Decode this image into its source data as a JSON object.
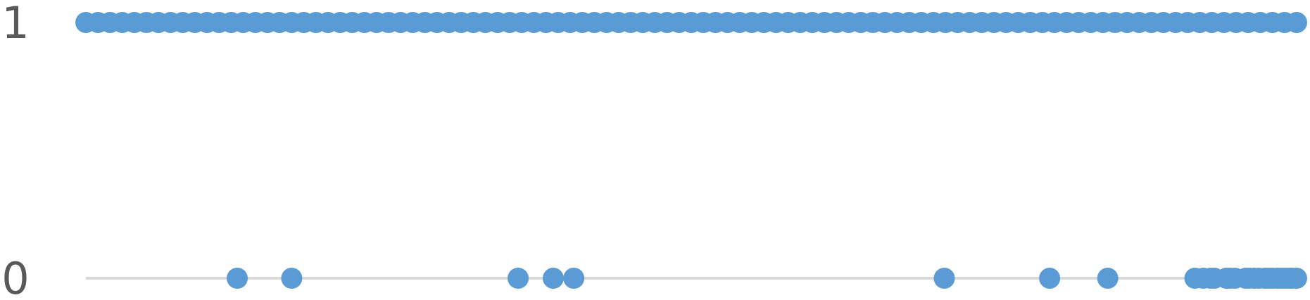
{
  "chart_data": {
    "type": "scatter",
    "title": "",
    "xlabel": "",
    "ylabel": "",
    "ylim": [
      0,
      1
    ],
    "y_ticks": [
      {
        "value": 0,
        "label": "0"
      },
      {
        "value": 1,
        "label": "1"
      }
    ],
    "grid": {
      "horizontal_baseline": true
    },
    "colors": {
      "series": "#5B9BD5",
      "baseline": "#D9D9D9",
      "tick_label": "#595959"
    },
    "series": [
      {
        "values": [
          {
            "x": 0,
            "y": 1
          },
          {
            "x": 1,
            "y": 1
          },
          {
            "x": 2,
            "y": 1
          },
          {
            "x": 3,
            "y": 1
          },
          {
            "x": 4,
            "y": 1
          },
          {
            "x": 5,
            "y": 1
          },
          {
            "x": 6,
            "y": 1
          },
          {
            "x": 7,
            "y": 1
          },
          {
            "x": 8,
            "y": 1
          },
          {
            "x": 9,
            "y": 1
          },
          {
            "x": 10,
            "y": 1
          },
          {
            "x": 11,
            "y": 1
          },
          {
            "x": 12,
            "y": 1
          },
          {
            "x": 13,
            "y": 1
          },
          {
            "x": 14,
            "y": 1
          },
          {
            "x": 15,
            "y": 1
          },
          {
            "x": 16,
            "y": 1
          },
          {
            "x": 17,
            "y": 1
          },
          {
            "x": 18,
            "y": 1
          },
          {
            "x": 19,
            "y": 1
          },
          {
            "x": 20,
            "y": 1
          },
          {
            "x": 21,
            "y": 1
          },
          {
            "x": 22,
            "y": 1
          },
          {
            "x": 23,
            "y": 1
          },
          {
            "x": 24,
            "y": 1
          },
          {
            "x": 25,
            "y": 1
          },
          {
            "x": 26,
            "y": 1
          },
          {
            "x": 27,
            "y": 1
          },
          {
            "x": 28,
            "y": 1
          },
          {
            "x": 29,
            "y": 1
          },
          {
            "x": 30,
            "y": 1
          },
          {
            "x": 31,
            "y": 1
          },
          {
            "x": 32,
            "y": 1
          },
          {
            "x": 33,
            "y": 1
          },
          {
            "x": 34,
            "y": 1
          },
          {
            "x": 35,
            "y": 1
          },
          {
            "x": 36,
            "y": 1
          },
          {
            "x": 37,
            "y": 1
          },
          {
            "x": 38,
            "y": 1
          },
          {
            "x": 39,
            "y": 1
          },
          {
            "x": 40,
            "y": 1
          },
          {
            "x": 41,
            "y": 1
          },
          {
            "x": 42,
            "y": 1
          },
          {
            "x": 43,
            "y": 1
          },
          {
            "x": 44,
            "y": 1
          },
          {
            "x": 45,
            "y": 1
          },
          {
            "x": 46,
            "y": 1
          },
          {
            "x": 47,
            "y": 1
          },
          {
            "x": 48,
            "y": 1
          },
          {
            "x": 49,
            "y": 1
          },
          {
            "x": 50,
            "y": 1
          },
          {
            "x": 51,
            "y": 1
          },
          {
            "x": 52,
            "y": 1
          },
          {
            "x": 53,
            "y": 1
          },
          {
            "x": 54,
            "y": 1
          },
          {
            "x": 55,
            "y": 1
          },
          {
            "x": 56,
            "y": 1
          },
          {
            "x": 57,
            "y": 1
          },
          {
            "x": 58,
            "y": 1
          },
          {
            "x": 59,
            "y": 1
          },
          {
            "x": 60,
            "y": 1
          },
          {
            "x": 61,
            "y": 1
          },
          {
            "x": 62,
            "y": 1
          },
          {
            "x": 63,
            "y": 1
          },
          {
            "x": 64,
            "y": 1
          },
          {
            "x": 65,
            "y": 1
          },
          {
            "x": 66,
            "y": 1
          },
          {
            "x": 67,
            "y": 1
          },
          {
            "x": 68,
            "y": 1
          },
          {
            "x": 69,
            "y": 1
          },
          {
            "x": 70,
            "y": 1
          },
          {
            "x": 71,
            "y": 1
          },
          {
            "x": 72,
            "y": 1
          },
          {
            "x": 73,
            "y": 1
          },
          {
            "x": 74,
            "y": 1
          },
          {
            "x": 75,
            "y": 1
          },
          {
            "x": 76,
            "y": 1
          },
          {
            "x": 77,
            "y": 1
          },
          {
            "x": 78,
            "y": 1
          },
          {
            "x": 79,
            "y": 1
          },
          {
            "x": 80,
            "y": 1
          },
          {
            "x": 81,
            "y": 1
          },
          {
            "x": 82,
            "y": 1
          },
          {
            "x": 83,
            "y": 1
          },
          {
            "x": 84,
            "y": 1
          },
          {
            "x": 85,
            "y": 1
          },
          {
            "x": 86,
            "y": 1
          },
          {
            "x": 87,
            "y": 1
          },
          {
            "x": 88,
            "y": 1
          },
          {
            "x": 89,
            "y": 1
          },
          {
            "x": 90,
            "y": 1
          },
          {
            "x": 91,
            "y": 1
          },
          {
            "x": 92,
            "y": 1
          },
          {
            "x": 93,
            "y": 1
          },
          {
            "x": 94,
            "y": 1
          },
          {
            "x": 95,
            "y": 1
          },
          {
            "x": 96,
            "y": 1
          },
          {
            "x": 97,
            "y": 1
          },
          {
            "x": 98,
            "y": 1
          },
          {
            "x": 99,
            "y": 1
          },
          {
            "x": 100,
            "y": 1
          },
          {
            "x": 12.5,
            "y": 0
          },
          {
            "x": 17,
            "y": 0
          },
          {
            "x": 35.7,
            "y": 0
          },
          {
            "x": 38.6,
            "y": 0
          },
          {
            "x": 40.3,
            "y": 0
          },
          {
            "x": 70.9,
            "y": 0
          },
          {
            "x": 79.6,
            "y": 0
          },
          {
            "x": 84.4,
            "y": 0
          },
          {
            "x": 91.6,
            "y": 0
          },
          {
            "x": 92.3,
            "y": 0
          },
          {
            "x": 92.9,
            "y": 0
          },
          {
            "x": 93.2,
            "y": 0
          },
          {
            "x": 94.2,
            "y": 0
          },
          {
            "x": 94.5,
            "y": 0
          },
          {
            "x": 94.9,
            "y": 0
          },
          {
            "x": 95.8,
            "y": 0
          },
          {
            "x": 96.1,
            "y": 0
          },
          {
            "x": 96.5,
            "y": 0
          },
          {
            "x": 96.9,
            "y": 0
          },
          {
            "x": 97.4,
            "y": 0
          },
          {
            "x": 97.7,
            "y": 0
          },
          {
            "x": 98.0,
            "y": 0
          },
          {
            "x": 98.4,
            "y": 0
          },
          {
            "x": 98.7,
            "y": 0
          },
          {
            "x": 99.0,
            "y": 0
          },
          {
            "x": 99.3,
            "y": 0
          },
          {
            "x": 99.6,
            "y": 0
          },
          {
            "x": 100,
            "y": 0
          }
        ]
      }
    ]
  }
}
